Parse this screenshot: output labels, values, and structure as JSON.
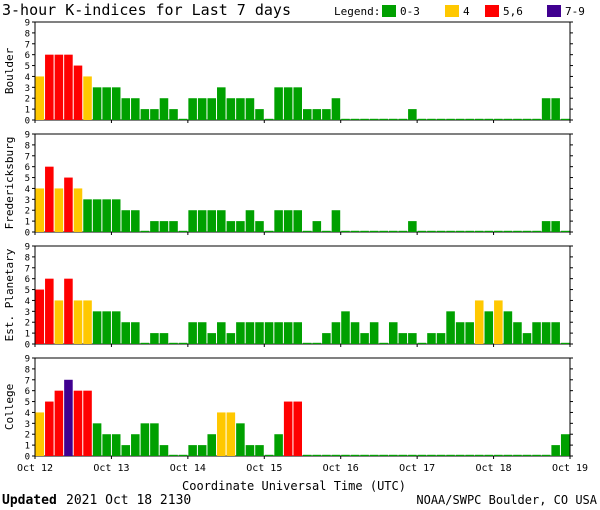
{
  "chart_data": {
    "type": "bar",
    "title": "3-hour K-indices for Last 7 days",
    "legend": {
      "label": "Legend:",
      "placement": "top-right",
      "entries": [
        {
          "label": "0-3",
          "color": "#00a000"
        },
        {
          "label": "4",
          "color": "#ffc800"
        },
        {
          "label": "5,6",
          "color": "#ff0000"
        },
        {
          "label": "7-9",
          "color": "#400090"
        }
      ]
    },
    "xlabel": "Coordinate Universal Time (UTC)",
    "x_ticks": [
      "Oct 12",
      "Oct 13",
      "Oct 14",
      "Oct 15",
      "Oct 16",
      "Oct 17",
      "Oct 18",
      "Oct 19"
    ],
    "y_ticks": [
      "0",
      "1",
      "2",
      "3",
      "4",
      "5",
      "6",
      "7",
      "8",
      "9"
    ],
    "ylim": [
      0,
      9
    ],
    "grid": false,
    "bins_per_day": 8,
    "bins_total": 56,
    "series": [
      {
        "name": "Boulder",
        "values": [
          4,
          6,
          6,
          6,
          5,
          4,
          3,
          3,
          3,
          2,
          2,
          1,
          1,
          2,
          1,
          0,
          2,
          2,
          2,
          3,
          2,
          2,
          2,
          1,
          0,
          3,
          3,
          3,
          1,
          1,
          1,
          2,
          0,
          0,
          0,
          0,
          0,
          0,
          0,
          1,
          0,
          0,
          0,
          0,
          0,
          0,
          0,
          0,
          0,
          0,
          0,
          0,
          0,
          2,
          2,
          0
        ]
      },
      {
        "name": "Fredericksburg",
        "values": [
          4,
          6,
          4,
          5,
          4,
          3,
          3,
          3,
          3,
          2,
          2,
          0,
          1,
          1,
          1,
          0,
          2,
          2,
          2,
          2,
          1,
          1,
          2,
          1,
          0,
          2,
          2,
          2,
          0,
          1,
          0,
          2,
          0,
          0,
          0,
          0,
          0,
          0,
          0,
          1,
          0,
          0,
          0,
          0,
          0,
          0,
          0,
          0,
          0,
          0,
          0,
          0,
          0,
          1,
          1,
          0
        ]
      },
      {
        "name": "Est. Planetary",
        "values": [
          5,
          6,
          4,
          6,
          4,
          4,
          3,
          3,
          3,
          2,
          2,
          0,
          1,
          1,
          0,
          0,
          2,
          2,
          1,
          2,
          1,
          2,
          2,
          2,
          2,
          2,
          2,
          2,
          0,
          0,
          1,
          2,
          3,
          2,
          1,
          2,
          0,
          2,
          1,
          1,
          0,
          1,
          1,
          3,
          2,
          2,
          4,
          3,
          4,
          3,
          2,
          1,
          2,
          2,
          2,
          0
        ]
      },
      {
        "name": "College",
        "values": [
          4,
          5,
          6,
          7,
          6,
          6,
          3,
          2,
          2,
          1,
          2,
          3,
          3,
          1,
          0,
          0,
          1,
          1,
          2,
          4,
          4,
          3,
          1,
          1,
          0,
          2,
          5,
          5,
          0,
          0,
          0,
          0,
          0,
          0,
          0,
          0,
          0,
          0,
          0,
          0,
          0,
          0,
          0,
          0,
          0,
          0,
          0,
          0,
          0,
          0,
          0,
          0,
          0,
          0,
          1,
          2
        ]
      }
    ]
  },
  "footer": {
    "updated_label": "Updated",
    "updated_value": "2021 Oct 18 2130",
    "credit": "NOAA/SWPC Boulder, CO USA"
  }
}
